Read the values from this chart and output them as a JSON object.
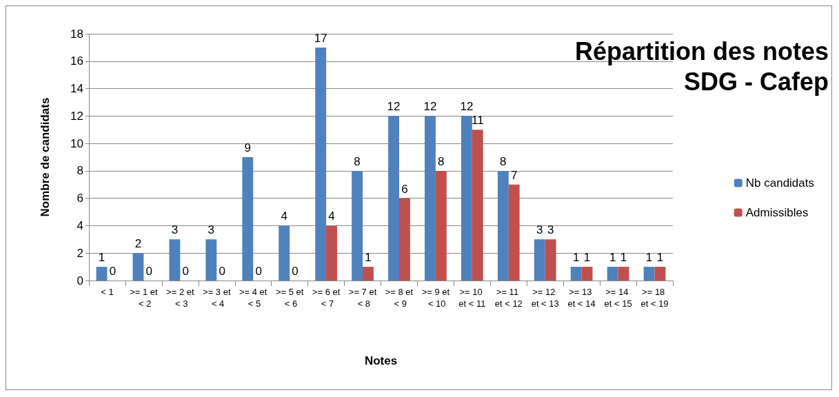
{
  "chart_data": {
    "type": "bar",
    "title": "Répartition des notes\nSDG - Cafep",
    "xlabel": "Notes",
    "ylabel": "Nombre de candidats",
    "categories": [
      "< 1",
      ">= 1 et < 2",
      ">= 2 et < 3",
      ">= 3 et < 4",
      ">= 4 et < 5",
      ">= 5 et < 6",
      ">= 6 et < 7",
      ">= 7 et < 8",
      ">= 8 et < 9",
      ">= 9 et < 10",
      ">= 10 et < 11",
      ">= 11 et < 12",
      ">= 12 et < 13",
      ">= 13 et < 14",
      ">= 14 et < 15",
      ">= 18 et < 19"
    ],
    "series": [
      {
        "name": "Nb candidats",
        "color": "#4f81bd",
        "values": [
          1,
          2,
          3,
          3,
          9,
          4,
          17,
          8,
          12,
          12,
          12,
          8,
          3,
          1,
          1,
          1
        ]
      },
      {
        "name": "Admissibles",
        "color": "#c0504d",
        "values": [
          0,
          0,
          0,
          0,
          0,
          0,
          4,
          1,
          6,
          8,
          11,
          7,
          3,
          1,
          1,
          1
        ]
      }
    ],
    "ylim": [
      0,
      18
    ],
    "yticks": [
      0,
      2,
      4,
      6,
      8,
      10,
      12,
      14,
      16,
      18
    ],
    "grid": "y",
    "legend": "right",
    "data_labels": true
  }
}
